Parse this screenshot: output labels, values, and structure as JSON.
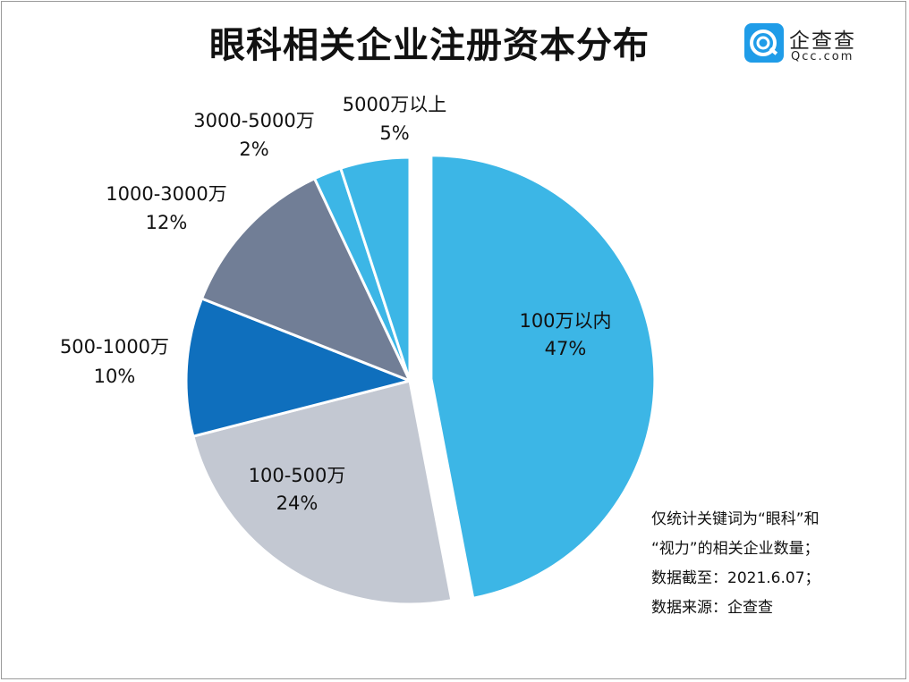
{
  "page": {
    "title": "眼科相关企业注册资本分布"
  },
  "logo": {
    "name": "企查查",
    "sub": "Qcc.com",
    "color": "#1f9ce8"
  },
  "chart_data": {
    "type": "pie",
    "title": "眼科相关企业注册资本分布",
    "slices": [
      {
        "label": "100万以内",
        "value": 47,
        "pct_label": "47%",
        "color": "#3cb6e6",
        "exploded": true
      },
      {
        "label": "100-500万",
        "value": 24,
        "pct_label": "24%",
        "color": "#c3c8d2",
        "exploded": false
      },
      {
        "label": "500-1000万",
        "value": 10,
        "pct_label": "10%",
        "color": "#0f6fbd",
        "exploded": false
      },
      {
        "label": "1000-3000万",
        "value": 12,
        "pct_label": "12%",
        "color": "#717e96",
        "exploded": false
      },
      {
        "label": "3000-5000万",
        "value": 2,
        "pct_label": "2%",
        "color": "#3cb6e6",
        "exploded": false
      },
      {
        "label": "5000万以上",
        "value": 5,
        "pct_label": "5%",
        "color": "#3cb6e6",
        "exploded": false
      }
    ]
  },
  "notes": [
    "仅统计关键词为“眼科”和",
    "“视力”的相关企业数量；",
    "数据截至：2021.6.07；",
    "数据来源：企查查"
  ]
}
